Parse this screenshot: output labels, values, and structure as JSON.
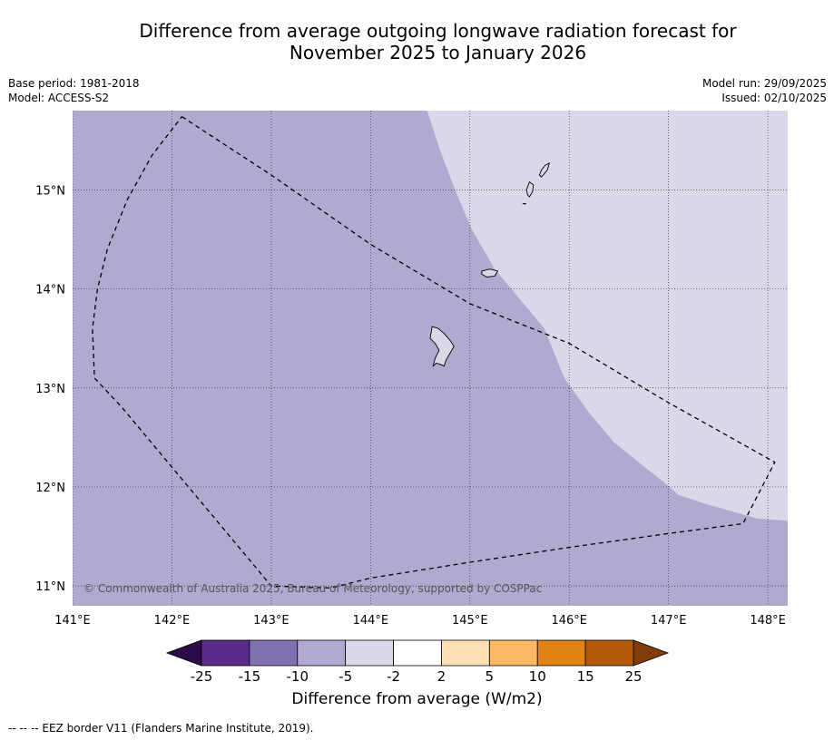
{
  "title": {
    "line1": "Difference from average outgoing longwave radiation forecast for",
    "line2": "November 2025 to January 2026"
  },
  "meta": {
    "base_period": "Base period: 1981-2018",
    "model": "Model: ACCESS-S2",
    "model_run": "Model run: 29/09/2025",
    "issued": "Issued: 02/10/2025"
  },
  "map": {
    "extent": {
      "lon_min": 141.0,
      "lon_max": 148.2,
      "lat_min": 10.8,
      "lat_max": 15.8
    },
    "lon_ticks": [
      {
        "value": 141,
        "label": "141°E"
      },
      {
        "value": 142,
        "label": "142°E"
      },
      {
        "value": 143,
        "label": "143°E"
      },
      {
        "value": 144,
        "label": "144°E"
      },
      {
        "value": 145,
        "label": "145°E"
      },
      {
        "value": 146,
        "label": "146°E"
      },
      {
        "value": 147,
        "label": "147°E"
      },
      {
        "value": 148,
        "label": "148°E"
      }
    ],
    "lat_ticks": [
      {
        "value": 11,
        "label": "11°N"
      },
      {
        "value": 12,
        "label": "12°N"
      },
      {
        "value": 13,
        "label": "13°N"
      },
      {
        "value": 14,
        "label": "14°N"
      },
      {
        "value": 15,
        "label": "15°N"
      }
    ],
    "copyright": "© Commonwealth of Australia 2025, Bureau of Meteorology, supported by COSPPac",
    "colors": {
      "class_minus10_minus5": "#b0aad0",
      "class_minus5_minus2": "#d8d8e9",
      "grid": "#333333"
    },
    "base_class": "-10 to -5",
    "region_class": "-5 to -2",
    "region_lighter": [
      [
        144.57,
        15.8
      ],
      [
        144.7,
        15.4
      ],
      [
        144.85,
        15.0
      ],
      [
        145.02,
        14.6
      ],
      [
        145.25,
        14.2
      ],
      [
        145.5,
        13.9
      ],
      [
        145.75,
        13.6
      ],
      [
        145.95,
        13.1
      ],
      [
        146.2,
        12.75
      ],
      [
        146.45,
        12.45
      ],
      [
        146.7,
        12.25
      ],
      [
        146.95,
        12.05
      ],
      [
        147.1,
        11.92
      ],
      [
        147.4,
        11.82
      ],
      [
        147.9,
        11.68
      ],
      [
        148.2,
        11.66
      ],
      [
        148.2,
        15.8
      ]
    ],
    "eez": [
      [
        142.1,
        15.74
      ],
      [
        143.0,
        15.15
      ],
      [
        144.0,
        14.45
      ],
      [
        145.0,
        13.85
      ],
      [
        146.0,
        13.45
      ],
      [
        147.0,
        12.85
      ],
      [
        148.07,
        12.25
      ],
      [
        147.75,
        11.63
      ],
      [
        147.0,
        11.53
      ],
      [
        146.0,
        11.39
      ],
      [
        145.0,
        11.24
      ],
      [
        144.0,
        11.08
      ],
      [
        143.6,
        10.98
      ],
      [
        143.0,
        11.0
      ],
      [
        142.5,
        11.6
      ],
      [
        142.0,
        12.2
      ],
      [
        141.5,
        12.8
      ],
      [
        141.22,
        13.1
      ],
      [
        141.2,
        13.6
      ],
      [
        141.25,
        14.0
      ],
      [
        141.35,
        14.4
      ],
      [
        141.55,
        14.9
      ],
      [
        141.8,
        15.35
      ],
      [
        142.1,
        15.74
      ]
    ],
    "islands": [
      {
        "name": "Guam",
        "coords": [
          [
            144.62,
            13.62
          ],
          [
            144.68,
            13.6
          ],
          [
            144.74,
            13.55
          ],
          [
            144.8,
            13.48
          ],
          [
            144.84,
            13.42
          ],
          [
            144.8,
            13.35
          ],
          [
            144.76,
            13.28
          ],
          [
            144.74,
            13.22
          ],
          [
            144.7,
            13.24
          ],
          [
            144.66,
            13.25
          ],
          [
            144.63,
            13.22
          ],
          [
            144.65,
            13.3
          ],
          [
            144.69,
            13.38
          ],
          [
            144.65,
            13.45
          ],
          [
            144.6,
            13.5
          ],
          [
            144.62,
            13.62
          ]
        ]
      },
      {
        "name": "Rota",
        "coords": [
          [
            145.12,
            14.18
          ],
          [
            145.2,
            14.2
          ],
          [
            145.28,
            14.18
          ],
          [
            145.25,
            14.13
          ],
          [
            145.17,
            14.12
          ],
          [
            145.12,
            14.15
          ],
          [
            145.12,
            14.18
          ]
        ]
      },
      {
        "name": "Tinian",
        "coords": [
          [
            145.6,
            15.08
          ],
          [
            145.64,
            15.05
          ],
          [
            145.63,
            14.98
          ],
          [
            145.6,
            14.93
          ],
          [
            145.58,
            14.95
          ],
          [
            145.57,
            15.0
          ],
          [
            145.6,
            15.08
          ]
        ]
      },
      {
        "name": "Saipan",
        "coords": [
          [
            145.8,
            15.27
          ],
          [
            145.78,
            15.2
          ],
          [
            145.72,
            15.13
          ],
          [
            145.7,
            15.15
          ],
          [
            145.72,
            15.2
          ],
          [
            145.76,
            15.25
          ],
          [
            145.8,
            15.27
          ]
        ]
      },
      {
        "name": "Aguijan",
        "coords": [
          [
            145.53,
            14.86
          ],
          [
            145.56,
            14.86
          ],
          [
            145.55,
            14.85
          ]
        ]
      }
    ]
  },
  "colorbar": {
    "ticks": [
      "-25",
      "-15",
      "-10",
      "-5",
      "-2",
      "2",
      "5",
      "10",
      "15",
      "25"
    ],
    "colors": [
      "#5a2a8a",
      "#8070b0",
      "#b0aad0",
      "#d8d8e9",
      "#ffffff",
      "#fde0b6",
      "#fdb863",
      "#e08214",
      "#b35806"
    ],
    "under_color": "#2d0a4a",
    "over_color": "#7f3b08",
    "label": "Difference from average (W/m2)"
  },
  "footer": "--  --  -- EEZ border V11 (Flanders Marine Institute, 2019)."
}
